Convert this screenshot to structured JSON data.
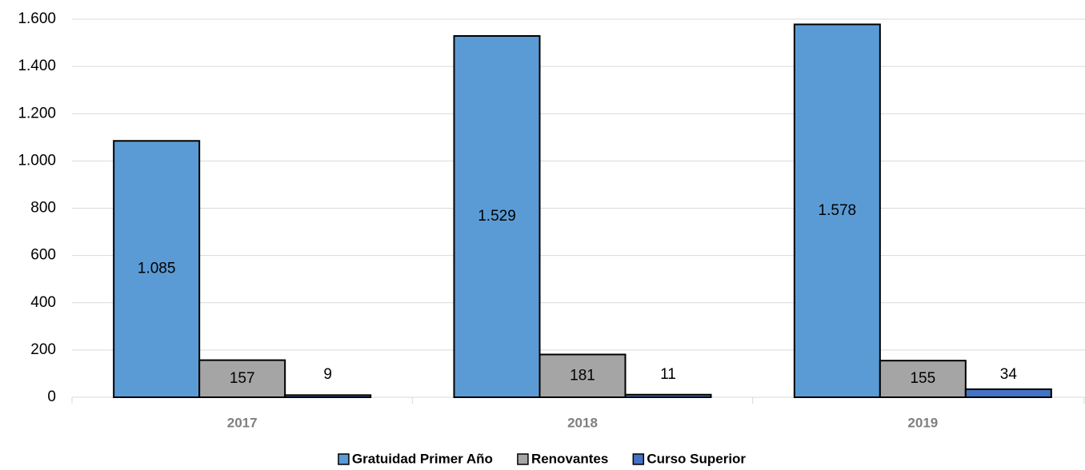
{
  "chart_data": {
    "type": "bar",
    "categories": [
      "2017",
      "2018",
      "2019"
    ],
    "series": [
      {
        "name": "Gratuidad Primer Año",
        "color": "#5b9bd5",
        "values": [
          1085,
          1529,
          1578
        ],
        "value_labels": [
          "1.085",
          "1.529",
          "1.578"
        ]
      },
      {
        "name": "Renovantes",
        "color": "#a5a5a5",
        "values": [
          157,
          181,
          155
        ]
      },
      {
        "name": "Curso Superior",
        "color": "#4472c4",
        "values": [
          9,
          11,
          34
        ]
      }
    ],
    "ylim": [
      0,
      1600
    ],
    "yticks": [
      0,
      200,
      400,
      600,
      800,
      {
        "value": 1000,
        "label": "1.000"
      },
      {
        "value": 1200,
        "label": "1.200"
      },
      {
        "value": 1400,
        "label": "1.400"
      },
      {
        "value": 1600,
        "label": "1.600"
      }
    ],
    "grid": true,
    "legend": "bottom"
  }
}
